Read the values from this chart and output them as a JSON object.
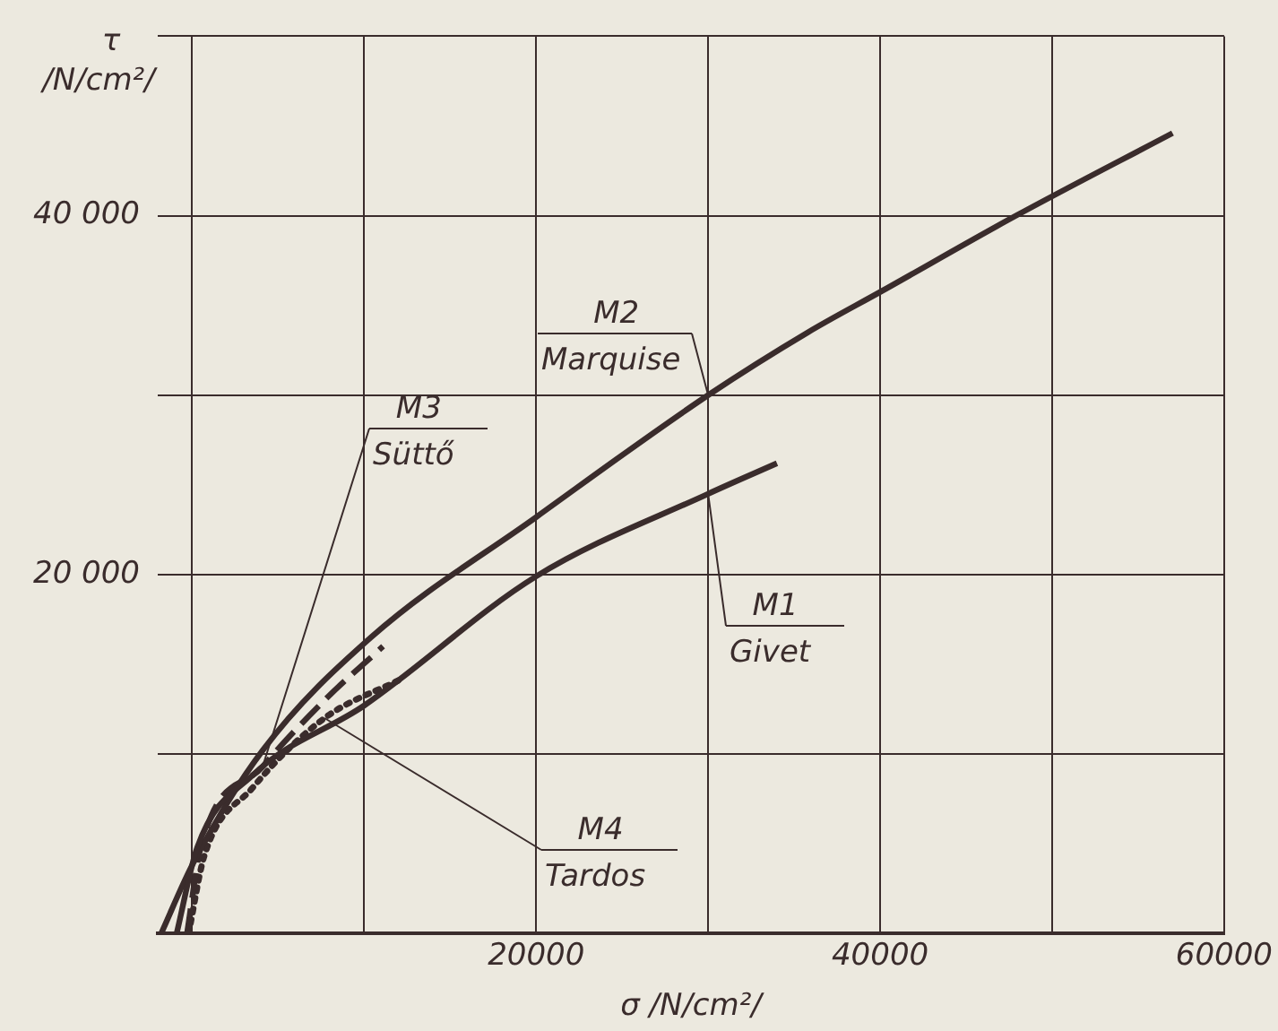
{
  "chart_data": {
    "type": "line",
    "xlabel": "σ /N/cm²/",
    "ylabel": "τ /N/cm²/",
    "xlim": [
      -2000,
      60000
    ],
    "ylim": [
      0,
      50000
    ],
    "xticks": [
      {
        "value": 0,
        "label": null
      },
      {
        "value": 10000,
        "label": null
      },
      20000,
      {
        "value": 30000,
        "label": null
      },
      40000,
      {
        "value": 50000,
        "label": null
      },
      60000
    ],
    "yticks": [
      {
        "value": 10000,
        "label": null
      },
      {
        "value": 20000,
        "label": "20 000"
      },
      {
        "value": 30000,
        "label": null
      },
      {
        "value": 40000,
        "label": "40 000"
      },
      {
        "value": 50000,
        "label": null
      }
    ],
    "grid": true,
    "legend": false,
    "marker": "none",
    "series": [
      {
        "name": "M1\nGivet",
        "color": "#3a2c2c",
        "line_style": "solid",
        "x": [
          -900,
          300,
          3500,
          10000,
          20000,
          30000,
          34000
        ],
        "values": [
          0,
          4800,
          8800,
          12700,
          19900,
          24500,
          26200
        ]
      },
      {
        "name": "M2\nMarquise",
        "color": "#3a2c2c",
        "line_style": "solid",
        "x": [
          -1800,
          0,
          4100,
          10400,
          20000,
          30000,
          35800,
          40100,
          47900,
          57000
        ],
        "values": [
          0,
          3800,
          10200,
          16500,
          23200,
          30000,
          33500,
          35800,
          40000,
          44600
        ]
      },
      {
        "name": "M3\nSüttő",
        "color": "#3a2c2c",
        "line_style": "dashed",
        "x": [
          -300,
          500,
          4100,
          7700,
          11100
        ],
        "values": [
          0,
          4800,
          9300,
          13000,
          16000
        ]
      },
      {
        "name": "M4\nTardos",
        "color": "#3a2c2c",
        "line_style": "dotted",
        "x": [
          -200,
          700,
          3500,
          7700,
          12200
        ],
        "values": [
          0,
          4300,
          8100,
          12000,
          14200
        ]
      }
    ]
  }
}
